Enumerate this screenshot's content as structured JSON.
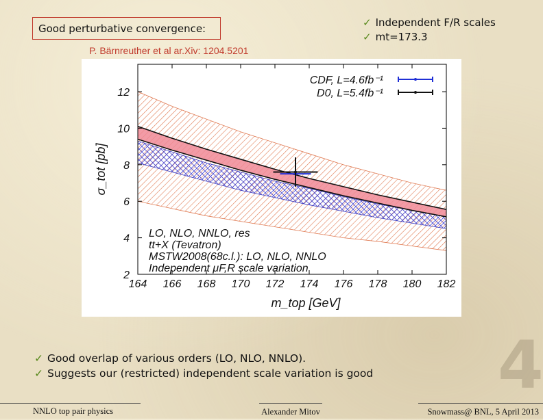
{
  "slide": {
    "boxed_title": "Good perturbative convergence:",
    "top_checks": [
      "Independent F/R scales",
      "mt=173.3"
    ],
    "citation": "P. Bärnreuther et al ar.Xiv: 1204.5201",
    "bottom_checks": [
      "Good overlap of various orders (LO, NLO, NNLO).",
      "Suggests our (restricted) independent scale variation is good"
    ],
    "slide_number": "4",
    "check_glyph": "✓",
    "footer": {
      "left": "NNLO top pair physics",
      "center": "Alexander Mitov",
      "right": "Snowmass@ BNL, 5 April 2013"
    },
    "colors": {
      "title_border": "#c0392b",
      "citation": "#c0392b",
      "check": "#5a8a1e"
    }
  },
  "chart_data": {
    "type": "line",
    "title": "",
    "xlabel": "m_top [GeV]",
    "ylabel": "σ_tot [pb]",
    "xlim": [
      164,
      182
    ],
    "ylim": [
      2,
      13.5
    ],
    "x_ticks": [
      "164",
      "166",
      "168",
      "170",
      "172",
      "174",
      "176",
      "178",
      "180",
      "182"
    ],
    "y_ticks": [
      "2",
      "4",
      "6",
      "8",
      "10",
      "12"
    ],
    "legend_text": [
      "LO, NLO, NNLO, res",
      "tt+X (Tevatron)",
      "MSTW2008(68c.l.): LO, NLO, NNLO",
      "Independent μF,R scale variation"
    ],
    "legend_position": "bottom-left",
    "x": [
      164,
      166,
      168,
      170,
      172,
      174,
      176,
      178,
      180,
      182
    ],
    "series": [
      {
        "name": "LO band",
        "style": "red hatched",
        "upper": [
          12.0,
          11.2,
          10.5,
          9.8,
          9.2,
          8.6,
          8.0,
          7.5,
          7.0,
          6.6
        ],
        "lower": [
          6.0,
          5.6,
          5.2,
          4.9,
          4.6,
          4.3,
          4.0,
          3.8,
          3.55,
          3.3
        ]
      },
      {
        "name": "NLO band",
        "style": "blue cross-hatched",
        "upper": [
          9.3,
          8.7,
          8.1,
          7.6,
          7.1,
          6.7,
          6.25,
          5.85,
          5.5,
          5.15
        ],
        "lower": [
          8.1,
          7.6,
          7.1,
          6.6,
          6.2,
          5.8,
          5.45,
          5.1,
          4.8,
          4.5
        ]
      },
      {
        "name": "NNLO band",
        "style": "pink filled",
        "upper": [
          10.1,
          9.45,
          8.85,
          8.3,
          7.75,
          7.25,
          6.8,
          6.35,
          5.95,
          5.55
        ],
        "lower": [
          9.4,
          8.8,
          8.25,
          7.7,
          7.2,
          6.75,
          6.3,
          5.9,
          5.5,
          5.15
        ]
      }
    ],
    "measurements": [
      {
        "label": "CDF, L=4.6fb⁻¹",
        "x": 173.2,
        "x_err": 0.9,
        "y": 7.5,
        "y_err": 0.6,
        "color": "#1f2fd6"
      },
      {
        "label": "D0, L=5.4fb⁻¹",
        "x": 173.2,
        "x_err": 1.3,
        "y": 7.6,
        "y_err": 0.8,
        "color": "#111111"
      }
    ]
  }
}
